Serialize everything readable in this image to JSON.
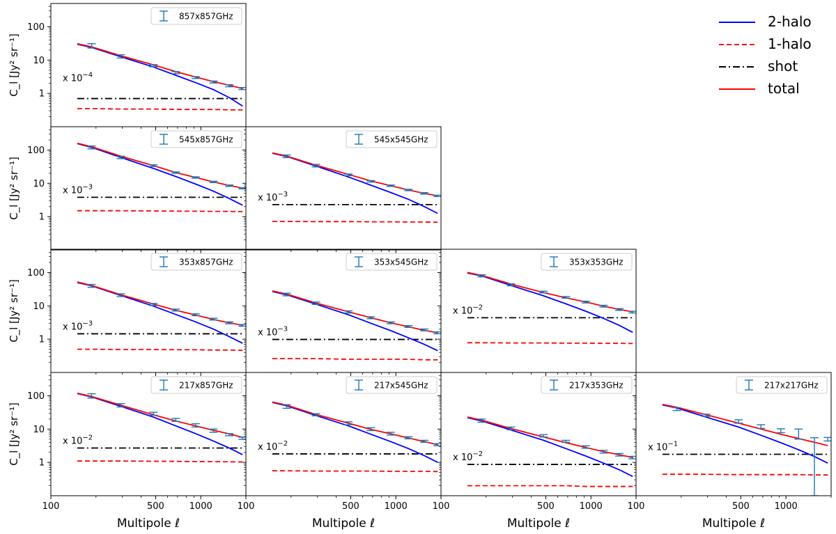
{
  "chart_data": {
    "type": "line",
    "layout": "lower-triangular 4x4 grid",
    "xscale": "log",
    "yscale": "log",
    "xlim": [
      100,
      2000
    ],
    "ylim": [
      0.1,
      500
    ],
    "xticks": [
      100,
      500,
      1000
    ],
    "xtick_labels": [
      "100",
      "500",
      "1000"
    ],
    "last_row_xtick_labels": [
      "100",
      "500",
      "1000",
      "100"
    ],
    "yticks": [
      1,
      10,
      100
    ],
    "ytick_labels": [
      "1",
      "10",
      "100"
    ],
    "xlabel": "Multipole ℓ",
    "ylabel": "C_l [Jy² sr⁻¹]",
    "legend": {
      "placement": "top-right",
      "entries": [
        {
          "label": "2-halo",
          "style": "solid",
          "color": "#0000ff"
        },
        {
          "label": "1-halo",
          "style": "dashed",
          "color": "#ff0000"
        },
        {
          "label": "shot",
          "style": "dashdot",
          "color": "#000000"
        },
        {
          "label": "total",
          "style": "solid",
          "color": "#ff0000"
        }
      ]
    },
    "panels": [
      {
        "name": "857x857GHz",
        "row": 0,
        "col": 0,
        "scale_base": "x 10",
        "scale_exp": "−4",
        "ell": [
          187,
          293,
          483,
          681,
          924,
          1214,
          1547,
          1900
        ],
        "data": [
          27,
          13,
          6.8,
          4.2,
          3.0,
          2.2,
          1.7,
          1.4
        ],
        "errors": [
          4,
          1.5,
          0.5,
          0.3,
          0.2,
          0.15,
          0.12,
          0.1
        ],
        "model_ell": [
          150,
          187,
          293,
          483,
          681,
          924,
          1214,
          1547,
          1900
        ],
        "total": [
          31,
          25,
          13.5,
          7.2,
          4.5,
          3.1,
          2.25,
          1.75,
          1.4
        ],
        "two_halo": [
          30,
          24,
          12.6,
          6.2,
          3.5,
          2.1,
          1.3,
          0.75,
          0.42
        ],
        "one_halo": [
          0.35,
          0.35,
          0.34,
          0.34,
          0.33,
          0.33,
          0.33,
          0.32,
          0.32
        ],
        "shot": 0.7
      },
      {
        "name": "545x857GHz",
        "row": 1,
        "col": 0,
        "scale_base": "x 10",
        "scale_exp": "−3",
        "ell": [
          187,
          293,
          483,
          681,
          924,
          1214,
          1547,
          1900
        ],
        "data": [
          120,
          60,
          34,
          21,
          15,
          11,
          8.5,
          7.1
        ],
        "errors": [
          12,
          5,
          2,
          1,
          0.7,
          0.5,
          0.4,
          0.3
        ],
        "model_ell": [
          150,
          187,
          293,
          483,
          681,
          924,
          1214,
          1547,
          1900
        ],
        "total": [
          160,
          125,
          65,
          34,
          21,
          15,
          11,
          8.6,
          7.2
        ],
        "two_halo": [
          155,
          120,
          60,
          28,
          16,
          9.5,
          5.8,
          3.5,
          2.2
        ],
        "one_halo": [
          1.5,
          1.5,
          1.5,
          1.48,
          1.46,
          1.45,
          1.44,
          1.43,
          1.42
        ],
        "shot": 3.8
      },
      {
        "name": "545x545GHz",
        "row": 1,
        "col": 1,
        "scale_base": "x 10",
        "scale_exp": "−3",
        "ell": [
          187,
          293,
          483,
          681,
          924,
          1214,
          1547,
          1900
        ],
        "data": [
          65,
          34,
          18,
          11.5,
          8.5,
          6.3,
          5.0,
          4.2
        ],
        "errors": [
          6,
          3,
          1,
          0.6,
          0.4,
          0.3,
          0.25,
          0.2
        ],
        "model_ell": [
          150,
          187,
          293,
          483,
          681,
          924,
          1214,
          1547,
          1900
        ],
        "total": [
          82,
          66,
          35,
          18.5,
          11.8,
          8.5,
          6.3,
          5.0,
          4.2
        ],
        "two_halo": [
          80,
          64,
          33,
          15.5,
          8.8,
          5.3,
          3.3,
          2.0,
          1.25
        ],
        "one_halo": [
          0.72,
          0.72,
          0.71,
          0.71,
          0.7,
          0.7,
          0.69,
          0.69,
          0.68
        ],
        "shot": 2.3
      },
      {
        "name": "353x857GHz",
        "row": 2,
        "col": 0,
        "scale_base": "x 10",
        "scale_exp": "−3",
        "ell": [
          187,
          293,
          483,
          681,
          924,
          1214,
          1547,
          1900
        ],
        "data": [
          40,
          21,
          11,
          7.5,
          5.4,
          4.0,
          3.1,
          2.6
        ],
        "errors": [
          4,
          2,
          0.8,
          0.5,
          0.35,
          0.25,
          0.2,
          0.15
        ],
        "model_ell": [
          150,
          187,
          293,
          483,
          681,
          924,
          1214,
          1547,
          1900
        ],
        "total": [
          52,
          41,
          21.5,
          11.3,
          7.4,
          5.3,
          3.9,
          3.1,
          2.6
        ],
        "two_halo": [
          50,
          40,
          20.5,
          9.8,
          5.5,
          3.3,
          2.0,
          1.2,
          0.75
        ],
        "one_halo": [
          0.5,
          0.5,
          0.49,
          0.49,
          0.48,
          0.48,
          0.47,
          0.47,
          0.46
        ],
        "shot": 1.45
      },
      {
        "name": "353x545GHz",
        "row": 2,
        "col": 1,
        "scale_base": "x 10",
        "scale_exp": "−3",
        "ell": [
          187,
          293,
          483,
          681,
          924,
          1214,
          1547,
          1900
        ],
        "data": [
          22,
          12,
          6.6,
          4.4,
          3.1,
          2.4,
          1.9,
          1.55
        ],
        "errors": [
          2,
          1,
          0.5,
          0.3,
          0.2,
          0.15,
          0.12,
          0.1
        ],
        "model_ell": [
          150,
          187,
          293,
          483,
          681,
          924,
          1214,
          1547,
          1900
        ],
        "total": [
          28,
          22.5,
          12.2,
          6.6,
          4.4,
          3.1,
          2.35,
          1.85,
          1.55
        ],
        "two_halo": [
          27,
          21.5,
          11.3,
          5.4,
          3.0,
          1.8,
          1.1,
          0.7,
          0.45
        ],
        "one_halo": [
          0.26,
          0.26,
          0.26,
          0.25,
          0.25,
          0.25,
          0.25,
          0.24,
          0.24
        ],
        "shot": 0.98
      },
      {
        "name": "353x353GHz",
        "row": 2,
        "col": 2,
        "scale_base": "x 10",
        "scale_exp": "−2",
        "ell": [
          187,
          293,
          483,
          681,
          924,
          1214,
          1547,
          1900
        ],
        "data": [
          80,
          43,
          26,
          18,
          13,
          9.8,
          7.8,
          6.5
        ],
        "errors": [
          6,
          3,
          1.5,
          1,
          0.8,
          0.6,
          0.5,
          0.4
        ],
        "model_ell": [
          150,
          187,
          293,
          483,
          681,
          924,
          1214,
          1547,
          1900
        ],
        "total": [
          100,
          82,
          45,
          25,
          17.5,
          13,
          9.8,
          7.8,
          6.6
        ],
        "two_halo": [
          97,
          79,
          41,
          20,
          11.5,
          6.9,
          4.2,
          2.6,
          1.6
        ],
        "one_halo": [
          0.78,
          0.78,
          0.77,
          0.77,
          0.76,
          0.76,
          0.75,
          0.75,
          0.74
        ],
        "shot": 4.4
      },
      {
        "name": "217x857GHz",
        "row": 3,
        "col": 0,
        "scale_base": "x 10",
        "scale_exp": "−2",
        "ell": [
          187,
          293,
          483,
          681,
          924,
          1214,
          1547,
          1900
        ],
        "data": [
          100,
          52,
          29,
          19,
          13,
          9.0,
          6.8,
          5.3
        ],
        "errors": [
          15,
          6,
          3,
          2,
          1.5,
          1,
          0.5,
          0.4
        ],
        "model_ell": [
          150,
          187,
          293,
          483,
          681,
          924,
          1214,
          1547,
          1900
        ],
        "total": [
          120,
          95,
          52,
          27,
          17.5,
          12.5,
          9.2,
          7.2,
          5.6
        ],
        "two_halo": [
          117,
          92,
          48,
          23,
          12.5,
          7.3,
          4.4,
          2.7,
          1.7
        ],
        "one_halo": [
          1.1,
          1.1,
          1.1,
          1.08,
          1.07,
          1.06,
          1.05,
          1.04,
          1.03
        ],
        "shot": 2.7
      },
      {
        "name": "217x545GHz",
        "row": 3,
        "col": 1,
        "scale_base": "x 10",
        "scale_exp": "−2",
        "ell": [
          187,
          293,
          483,
          681,
          924,
          1214,
          1547,
          1900
        ],
        "data": [
          48,
          27,
          15,
          10,
          7.3,
          5.5,
          4.3,
          3.4
        ],
        "errors": [
          6,
          2,
          1.5,
          1,
          0.7,
          0.4,
          0.3,
          0.25
        ],
        "model_ell": [
          150,
          187,
          293,
          483,
          681,
          924,
          1214,
          1547,
          1900
        ],
        "total": [
          65,
          52,
          27.5,
          15,
          9.8,
          7.2,
          5.4,
          4.2,
          3.4
        ],
        "two_halo": [
          63,
          50,
          25.5,
          12.5,
          7.0,
          4.2,
          2.6,
          1.6,
          1.0
        ],
        "one_halo": [
          0.56,
          0.56,
          0.55,
          0.55,
          0.55,
          0.54,
          0.54,
          0.54,
          0.53
        ],
        "shot": 1.8
      },
      {
        "name": "217x353GHz",
        "row": 3,
        "col": 2,
        "scale_base": "x 10",
        "scale_exp": "−2",
        "ell": [
          187,
          293,
          483,
          681,
          924,
          1214,
          1547,
          1900
        ],
        "data": [
          18,
          10.5,
          6.3,
          4.3,
          2.9,
          2.1,
          1.7,
          1.4
        ],
        "errors": [
          2,
          1,
          0.5,
          0.3,
          0.25,
          0.2,
          0.15,
          0.12
        ],
        "model_ell": [
          150,
          187,
          293,
          483,
          681,
          924,
          1214,
          1547,
          1900
        ],
        "total": [
          23,
          18.5,
          10.4,
          5.8,
          3.9,
          2.8,
          2.1,
          1.7,
          1.4
        ],
        "two_halo": [
          22,
          17.5,
          9.4,
          4.6,
          2.6,
          1.55,
          0.95,
          0.6,
          0.38
        ],
        "one_halo": [
          0.2,
          0.2,
          0.2,
          0.2,
          0.2,
          0.19,
          0.19,
          0.19,
          0.19
        ],
        "shot": 0.87
      },
      {
        "name": "217x217GHz",
        "row": 3,
        "col": 3,
        "scale_base": "x 10",
        "scale_exp": "−1",
        "ell": [
          187,
          293,
          483,
          681,
          924,
          1214,
          1547,
          1900
        ],
        "data": [
          40,
          26,
          17,
          12,
          9,
          7.5,
          2.5,
          5
        ],
        "errors": [
          4,
          2,
          2,
          1.5,
          1.2,
          2.5,
          3.0,
          0.6
        ],
        "model_ell": [
          150,
          187,
          293,
          483,
          681,
          924,
          1214,
          1547,
          1900
        ],
        "total": [
          55,
          45,
          27,
          15,
          10,
          7,
          5.2,
          4,
          3.2
        ],
        "two_halo": [
          53,
          43,
          23,
          11.5,
          6.5,
          3.9,
          2.4,
          1.5,
          0.95
        ],
        "one_halo": [
          0.44,
          0.44,
          0.44,
          0.43,
          0.43,
          0.43,
          0.43,
          0.42,
          0.42
        ],
        "shot": 1.75
      }
    ]
  }
}
